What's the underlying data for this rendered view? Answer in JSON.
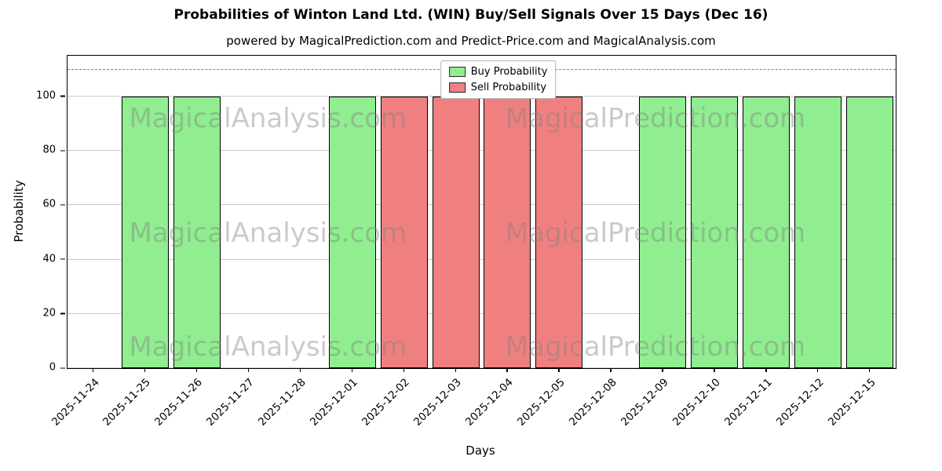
{
  "header": {
    "title": "Probabilities of Winton Land Ltd. (WIN) Buy/Sell Signals Over 15 Days (Dec 16)",
    "subtitle": "powered by MagicalPrediction.com and Predict-Price.com and MagicalAnalysis.com"
  },
  "chart_data": {
    "type": "bar",
    "title": "Probabilities of Winton Land Ltd. (WIN) Buy/Sell Signals Over 15 Days (Dec 16)",
    "xlabel": "Days",
    "ylabel": "Probability",
    "categories": [
      "2025-11-24",
      "2025-11-25",
      "2025-11-26",
      "2025-11-27",
      "2025-11-28",
      "2025-12-01",
      "2025-12-02",
      "2025-12-03",
      "2025-12-04",
      "2025-12-05",
      "2025-12-08",
      "2025-12-09",
      "2025-12-10",
      "2025-12-11",
      "2025-12-12",
      "2025-12-15"
    ],
    "series": [
      {
        "name": "Buy Probability",
        "color": "#90EE90",
        "values": [
          0,
          100,
          100,
          0,
          0,
          100,
          0,
          0,
          0,
          0,
          0,
          100,
          100,
          100,
          100,
          100
        ]
      },
      {
        "name": "Sell Probability",
        "color": "#F08080",
        "values": [
          0,
          0,
          0,
          0,
          0,
          0,
          100,
          100,
          100,
          100,
          0,
          0,
          0,
          0,
          0,
          0
        ]
      }
    ],
    "ylim": [
      0,
      115
    ],
    "yticks": [
      0,
      20,
      40,
      60,
      80,
      100
    ],
    "threshold_line": {
      "y": 110,
      "style": "dashed",
      "color": "#7f7f7f"
    },
    "grid": true,
    "bar_edge_color": "#000000",
    "legend": {
      "position": "upper center",
      "entries": [
        "Buy Probability",
        "Sell Probability"
      ]
    },
    "watermarks": {
      "left": "MagicalAnalysis.com",
      "right": "MagicalPrediction.com",
      "rows": 3
    }
  }
}
